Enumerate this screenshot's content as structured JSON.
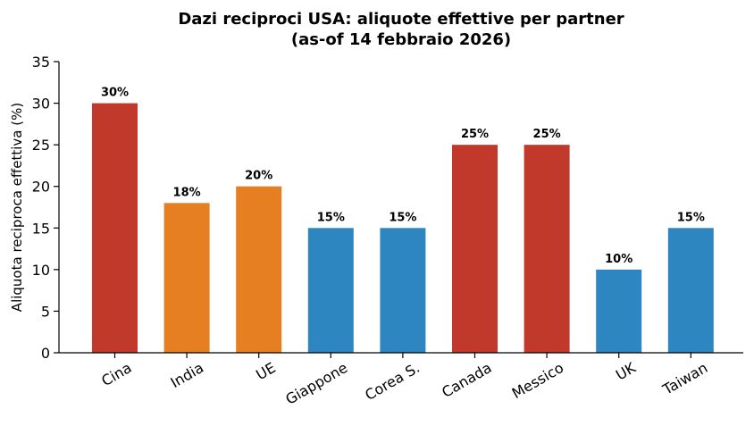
{
  "chart_data": {
    "type": "bar",
    "title": "Dazi reciproci USA: aliquote effettive per partner",
    "subtitle": "(as-of 14 febbraio 2026)",
    "xlabel": "",
    "ylabel": "Aliquota reciproca effettiva (%)",
    "ylim": [
      0,
      35
    ],
    "yticks": [
      0,
      5,
      10,
      15,
      20,
      25,
      30,
      35
    ],
    "categories": [
      "Cina",
      "India",
      "UE",
      "Giappone",
      "Corea S.",
      "Canada",
      "Messico",
      "UK",
      "Taiwan"
    ],
    "values": [
      30,
      18,
      20,
      15,
      15,
      25,
      25,
      10,
      15
    ],
    "data_labels": [
      "30%",
      "18%",
      "20%",
      "15%",
      "15%",
      "25%",
      "25%",
      "10%",
      "15%"
    ],
    "colors": [
      "#c0392b",
      "#e67e22",
      "#e67e22",
      "#2e86c1",
      "#2e86c1",
      "#c0392b",
      "#c0392b",
      "#2e86c1",
      "#2e86c1"
    ],
    "grid": false,
    "legend": "none"
  }
}
